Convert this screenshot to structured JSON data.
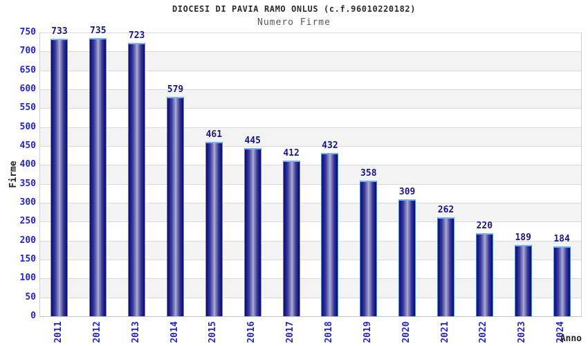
{
  "chart_data": {
    "type": "bar",
    "title": "DIOCESI DI PAVIA RAMO ONLUS (c.f.96010220182)",
    "subtitle": "Numero Firme",
    "xlabel": "Anno",
    "ylabel": "Firme",
    "categories": [
      "2011",
      "2012",
      "2013",
      "2014",
      "2015",
      "2016",
      "2017",
      "2018",
      "2019",
      "2020",
      "2021",
      "2022",
      "2023",
      "2024"
    ],
    "values": [
      733,
      735,
      723,
      579,
      461,
      445,
      412,
      432,
      358,
      309,
      262,
      220,
      189,
      184
    ],
    "ylim": [
      0,
      750
    ],
    "ytick_step": 50,
    "grid": "horizontal gridlines every 50 with alternating white/grey bands",
    "legend": "none",
    "bar_labels_shown": true
  },
  "colors": {
    "bar_edge": "#0e0e6e",
    "bar_center": "#aeaed6",
    "bar_outline": "#4d8fe0",
    "bar_top_cap": "#74b3f4",
    "value_label": "#17177f",
    "tick_label": "#2424cd",
    "axis_label": "#222222",
    "title": "#2b2b2b",
    "subtitle": "#565656",
    "band_alt": "#f3f3f3",
    "gridline": "#dadada",
    "plot_border": "#cfcfcf"
  }
}
